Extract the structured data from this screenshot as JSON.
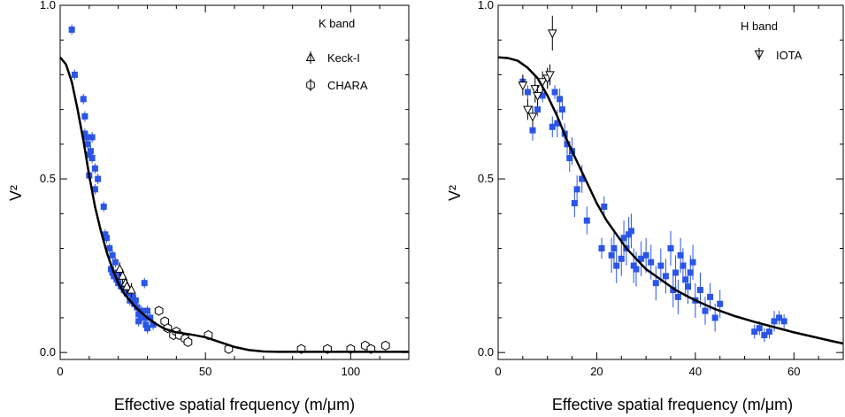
{
  "chart_data": [
    {
      "type": "scatter",
      "panel": "left",
      "band_label": "K band",
      "xlabel": "Effective spatial frequency  (m/μm)",
      "ylabel": "V²",
      "xlim": [
        0,
        120
      ],
      "ylim": [
        -0.02,
        1.0
      ],
      "xticks": [
        0,
        50,
        100
      ],
      "xtick_labels": [
        "0",
        "50",
        "100"
      ],
      "yticks": [
        0.0,
        0.5,
        1.0
      ],
      "ytick_labels": [
        "0.0",
        "0.5",
        "1.0"
      ],
      "legend_placement": "top-right",
      "series": [
        {
          "marker": "square",
          "color": "#2a55e6",
          "x": [
            4,
            5,
            8,
            8.5,
            8.5,
            9,
            9.5,
            10,
            10,
            10.5,
            11,
            11,
            12,
            12,
            13,
            15,
            15.5,
            16,
            17,
            17.5,
            18,
            18,
            18.5,
            19,
            19,
            19.5,
            20,
            20,
            21,
            22,
            23,
            24,
            25,
            25.5,
            26,
            26.5,
            27,
            27,
            28,
            28,
            29,
            29,
            29.5,
            30,
            30,
            31,
            32
          ],
          "y": [
            0.93,
            0.8,
            0.73,
            0.68,
            0.63,
            0.62,
            0.6,
            0.57,
            0.51,
            0.58,
            0.56,
            0.62,
            0.53,
            0.47,
            0.5,
            0.42,
            0.34,
            0.33,
            0.3,
            0.24,
            0.23,
            0.28,
            0.22,
            0.26,
            0.22,
            0.21,
            0.2,
            0.23,
            0.19,
            0.18,
            0.17,
            0.15,
            0.16,
            0.14,
            0.15,
            0.13,
            0.11,
            0.09,
            0.12,
            0.1,
            0.2,
            0.1,
            0.08,
            0.12,
            0.07,
            0.1,
            0.08
          ],
          "yerr": [
            0.015,
            0.015,
            0.015,
            0.015,
            0.015,
            0.015,
            0.015,
            0.015,
            0.015,
            0.015,
            0.015,
            0.015,
            0.015,
            0.015,
            0.015,
            0.015,
            0.015,
            0.015,
            0.015,
            0.015,
            0.015,
            0.015,
            0.015,
            0.015,
            0.015,
            0.015,
            0.015,
            0.015,
            0.015,
            0.015,
            0.015,
            0.015,
            0.015,
            0.015,
            0.015,
            0.015,
            0.015,
            0.015,
            0.015,
            0.015,
            0.015,
            0.015,
            0.015,
            0.015,
            0.015,
            0.015,
            0.015
          ]
        },
        {
          "name": "Keck-I",
          "marker": "triangle-up",
          "color": "#000000",
          "x": [
            20.5,
            21.5,
            22.5,
            23,
            24.5
          ],
          "y": [
            0.24,
            0.22,
            0.2,
            0.19,
            0.18
          ],
          "yerr": [
            0.02,
            0.02,
            0.02,
            0.02,
            0.02
          ]
        },
        {
          "name": "CHARA",
          "marker": "hexagon",
          "color": "#000000",
          "x": [
            34,
            36,
            37,
            39,
            40,
            41,
            43,
            44,
            51,
            58,
            83,
            92,
            100,
            105,
            107,
            112
          ],
          "y": [
            0.12,
            0.09,
            0.07,
            0.05,
            0.06,
            0.05,
            0.04,
            0.03,
            0.05,
            0.01,
            0.01,
            0.01,
            0.01,
            0.02,
            0.01,
            0.02
          ],
          "yerr": [
            0.005,
            0.005,
            0.005,
            0.005,
            0.005,
            0.005,
            0.005,
            0.005,
            0.005,
            0.005,
            0.005,
            0.005,
            0.005,
            0.005,
            0.005,
            0.005
          ]
        }
      ],
      "model": {
        "x": [
          0,
          2,
          4,
          6,
          8,
          10,
          12,
          14,
          16,
          18,
          20,
          22,
          24,
          26,
          28,
          30,
          33,
          36,
          40,
          45,
          50,
          55,
          60,
          65,
          70,
          75,
          80,
          90,
          100,
          110,
          120
        ],
        "y": [
          0.85,
          0.83,
          0.78,
          0.7,
          0.61,
          0.51,
          0.42,
          0.35,
          0.29,
          0.24,
          0.2,
          0.17,
          0.15,
          0.13,
          0.115,
          0.1,
          0.082,
          0.068,
          0.058,
          0.052,
          0.044,
          0.03,
          0.016,
          0.007,
          0.003,
          0.002,
          0.002,
          0.002,
          0.002,
          0.002,
          0.002
        ]
      }
    },
    {
      "type": "scatter",
      "panel": "right",
      "band_label": "H band",
      "xlabel": "Effective spatial frequency (m/μm)",
      "ylabel": "V²",
      "xlim": [
        0,
        70
      ],
      "ylim": [
        -0.02,
        1.0
      ],
      "xticks": [
        0,
        20,
        40,
        60
      ],
      "xtick_labels": [
        "0",
        "20",
        "40",
        "60"
      ],
      "yticks": [
        0.0,
        0.5,
        1.0
      ],
      "ytick_labels": [
        "0.0",
        "0.5",
        "1.0"
      ],
      "legend_placement": "top-right",
      "series": [
        {
          "marker": "square",
          "color": "#2a55e6",
          "x": [
            5,
            6,
            7,
            8,
            9,
            10,
            11,
            11.5,
            12,
            12.5,
            13,
            13.5,
            14,
            14.5,
            15,
            15.5,
            16,
            17,
            18,
            21,
            21.5,
            23,
            23.5,
            24,
            25,
            25.5,
            26,
            26.5,
            27,
            27.5,
            28,
            29,
            30,
            31,
            32,
            33,
            34,
            35,
            35.5,
            36,
            36.5,
            37,
            37.5,
            38,
            38.5,
            39,
            39.5,
            40,
            41,
            42,
            43,
            44,
            45,
            52,
            53,
            54,
            55,
            56,
            57,
            58
          ],
          "y": [
            0.78,
            0.75,
            0.64,
            0.7,
            0.74,
            0.79,
            0.65,
            0.75,
            0.66,
            0.73,
            0.7,
            0.63,
            0.6,
            0.56,
            0.58,
            0.43,
            0.47,
            0.5,
            0.38,
            0.3,
            0.42,
            0.28,
            0.3,
            0.25,
            0.27,
            0.33,
            0.3,
            0.34,
            0.35,
            0.25,
            0.24,
            0.27,
            0.28,
            0.26,
            0.2,
            0.25,
            0.22,
            0.3,
            0.18,
            0.23,
            0.16,
            0.28,
            0.25,
            0.21,
            0.19,
            0.23,
            0.26,
            0.15,
            0.18,
            0.12,
            0.16,
            0.1,
            0.14,
            0.06,
            0.07,
            0.05,
            0.06,
            0.09,
            0.1,
            0.09
          ],
          "yerr": [
            0.02,
            0.02,
            0.03,
            0.02,
            0.02,
            0.03,
            0.03,
            0.02,
            0.04,
            0.03,
            0.03,
            0.03,
            0.03,
            0.04,
            0.04,
            0.04,
            0.04,
            0.04,
            0.04,
            0.03,
            0.03,
            0.05,
            0.05,
            0.05,
            0.05,
            0.05,
            0.05,
            0.05,
            0.05,
            0.05,
            0.05,
            0.05,
            0.05,
            0.05,
            0.05,
            0.05,
            0.05,
            0.05,
            0.05,
            0.05,
            0.05,
            0.05,
            0.05,
            0.05,
            0.05,
            0.05,
            0.05,
            0.05,
            0.05,
            0.04,
            0.04,
            0.04,
            0.04,
            0.02,
            0.02,
            0.02,
            0.02,
            0.03,
            0.02,
            0.02
          ]
        },
        {
          "name": "IOTA",
          "marker": "triangle-down",
          "color": "#000000",
          "x": [
            5,
            6,
            7,
            7.5,
            8,
            9,
            10,
            10.5,
            11
          ],
          "y": [
            0.77,
            0.7,
            0.68,
            0.76,
            0.74,
            0.78,
            0.79,
            0.8,
            0.92
          ],
          "yerr": [
            0.03,
            0.03,
            0.03,
            0.04,
            0.03,
            0.03,
            0.03,
            0.03,
            0.05
          ]
        }
      ],
      "model": {
        "x": [
          0,
          2,
          4,
          6,
          8,
          10,
          12,
          14,
          16,
          18,
          20,
          22,
          24,
          26,
          28,
          30,
          32,
          34,
          36,
          38,
          40,
          44,
          48,
          52,
          56,
          60,
          64,
          68,
          70
        ],
        "y": [
          0.85,
          0.848,
          0.84,
          0.82,
          0.79,
          0.74,
          0.68,
          0.61,
          0.55,
          0.49,
          0.43,
          0.38,
          0.34,
          0.3,
          0.27,
          0.24,
          0.22,
          0.2,
          0.18,
          0.165,
          0.15,
          0.125,
          0.105,
          0.088,
          0.073,
          0.058,
          0.045,
          0.032,
          0.026
        ]
      }
    }
  ]
}
